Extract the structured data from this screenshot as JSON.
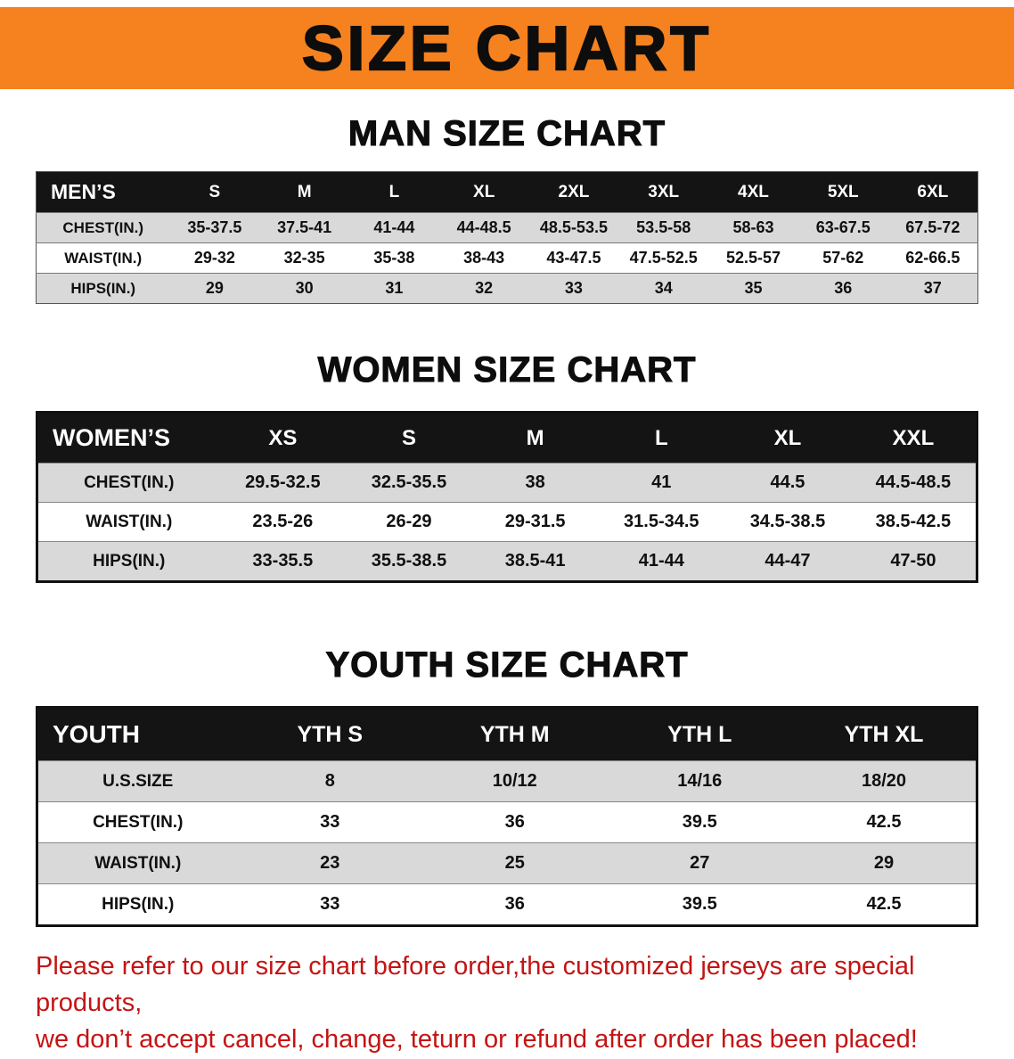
{
  "banner": {
    "title": "SIZE CHART",
    "background_color": "#f5821f",
    "text_color": "#0d0d0d"
  },
  "men": {
    "heading": "MAN SIZE CHART",
    "label": "MEN’S",
    "columns": [
      "S",
      "M",
      "L",
      "XL",
      "2XL",
      "3XL",
      "4XL",
      "5XL",
      "6XL"
    ],
    "rows": [
      {
        "label": "CHEST(IN.)",
        "values": [
          "35-37.5",
          "37.5-41",
          "41-44",
          "44-48.5",
          "48.5-53.5",
          "53.5-58",
          "58-63",
          "63-67.5",
          "67.5-72"
        ]
      },
      {
        "label": "WAIST(IN.)",
        "values": [
          "29-32",
          "32-35",
          "35-38",
          "38-43",
          "43-47.5",
          "47.5-52.5",
          "52.5-57",
          "57-62",
          "62-66.5"
        ]
      },
      {
        "label": "HIPS(IN.)",
        "values": [
          "29",
          "30",
          "31",
          "32",
          "33",
          "34",
          "35",
          "36",
          "37"
        ]
      }
    ]
  },
  "women": {
    "heading": "WOMEN SIZE CHART",
    "label": "WOMEN’S",
    "columns": [
      "XS",
      "S",
      "M",
      "L",
      "XL",
      "XXL"
    ],
    "rows": [
      {
        "label": "CHEST(IN.)",
        "values": [
          "29.5-32.5",
          "32.5-35.5",
          "38",
          "41",
          "44.5",
          "44.5-48.5"
        ]
      },
      {
        "label": "WAIST(IN.)",
        "values": [
          "23.5-26",
          "26-29",
          "29-31.5",
          "31.5-34.5",
          "34.5-38.5",
          "38.5-42.5"
        ]
      },
      {
        "label": "HIPS(IN.)",
        "values": [
          "33-35.5",
          "35.5-38.5",
          "38.5-41",
          "41-44",
          "44-47",
          "47-50"
        ]
      }
    ]
  },
  "youth": {
    "heading": "YOUTH SIZE CHART",
    "label": "YOUTH",
    "columns": [
      "YTH S",
      "YTH M",
      "YTH L",
      "YTH XL"
    ],
    "rows": [
      {
        "label": "U.S.SIZE",
        "values": [
          "8",
          "10/12",
          "14/16",
          "18/20"
        ]
      },
      {
        "label": "CHEST(IN.)",
        "values": [
          "33",
          "36",
          "39.5",
          "42.5"
        ]
      },
      {
        "label": "WAIST(IN.)",
        "values": [
          "23",
          "25",
          "27",
          "29"
        ]
      },
      {
        "label": "HIPS(IN.)",
        "values": [
          "33",
          "36",
          "39.5",
          "42.5"
        ]
      }
    ]
  },
  "disclaimer": {
    "line1": "Please refer to our size chart before order,the customized jerseys are special products,",
    "line2": "we don’t accept cancel, change, teturn or refund after order has been placed!",
    "text_color": "#c41414"
  },
  "table_colors": {
    "header_background": "#141414",
    "stripe_row_background": "#d9d9d9",
    "plain_row_background": "#ffffff"
  }
}
